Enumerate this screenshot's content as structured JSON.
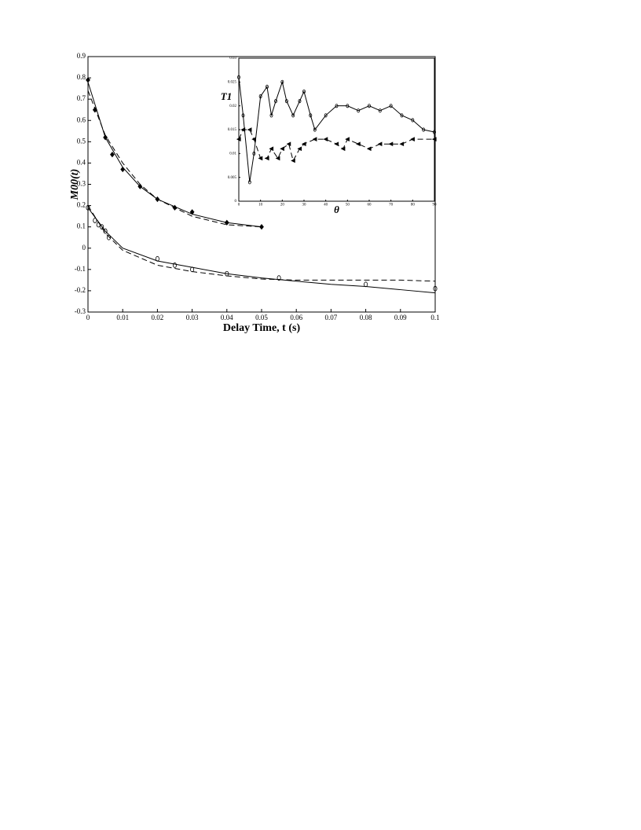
{
  "chart_data": [
    {
      "type": "line",
      "xlabel": "Delay Time, t (s)",
      "ylabel": "M00(t)",
      "xlim": [
        0,
        0.1
      ],
      "xticks": [
        0,
        0.01,
        0.02,
        0.03,
        0.04,
        0.05,
        0.06,
        0.07,
        0.08,
        0.09,
        0.1
      ],
      "ylim": [
        -0.3,
        0.9
      ],
      "yticks": [
        -0.3,
        -0.2,
        -0.1,
        0,
        0.1,
        0.2,
        0.3,
        0.4,
        0.5,
        0.6,
        0.7,
        0.8,
        0.9
      ],
      "series": [
        {
          "color": "#000000",
          "marker": "diamond",
          "line": "none",
          "x": [
            0,
            0.002,
            0.005,
            0.007,
            0.01,
            0.015,
            0.02,
            0.025,
            0.03,
            0.04,
            0.05
          ],
          "values": [
            0.79,
            0.65,
            0.52,
            0.44,
            0.37,
            0.29,
            0.23,
            0.19,
            0.17,
            0.12,
            0.1
          ]
        },
        {
          "color": "#000000",
          "marker": "none",
          "line": "solid",
          "x": [
            0,
            0.005,
            0.01,
            0.015,
            0.02,
            0.03,
            0.04,
            0.05
          ],
          "values": [
            0.78,
            0.52,
            0.38,
            0.29,
            0.23,
            0.16,
            0.12,
            0.1
          ]
        },
        {
          "color": "#000000",
          "marker": "none",
          "line": "dashed",
          "x": [
            0,
            0.005,
            0.01,
            0.015,
            0.02,
            0.03,
            0.04,
            0.05
          ],
          "values": [
            0.74,
            0.53,
            0.4,
            0.3,
            0.23,
            0.15,
            0.11,
            0.1
          ]
        },
        {
          "color": "#000000",
          "marker": "circle",
          "line": "none",
          "x": [
            0,
            0.002,
            0.003,
            0.004,
            0.005,
            0.006,
            0.02,
            0.025,
            0.03,
            0.04,
            0.055,
            0.08,
            0.1
          ],
          "values": [
            0.19,
            0.13,
            0.11,
            0.1,
            0.08,
            0.05,
            -0.05,
            -0.08,
            -0.1,
            -0.12,
            -0.14,
            -0.17,
            -0.19
          ]
        },
        {
          "color": "#000000",
          "marker": "none",
          "line": "solid",
          "x": [
            0,
            0.005,
            0.01,
            0.02,
            0.03,
            0.04,
            0.05,
            0.06,
            0.07,
            0.08,
            0.09,
            0.1
          ],
          "values": [
            0.19,
            0.08,
            0,
            -0.06,
            -0.09,
            -0.12,
            -0.14,
            -0.155,
            -0.17,
            -0.18,
            -0.195,
            -0.21
          ]
        },
        {
          "color": "#000000",
          "marker": "none",
          "line": "dashed",
          "x": [
            0,
            0.005,
            0.01,
            0.02,
            0.03,
            0.04,
            0.05,
            0.06,
            0.07,
            0.08,
            0.09,
            0.1
          ],
          "values": [
            0.2,
            0.07,
            -0.01,
            -0.08,
            -0.11,
            -0.13,
            -0.145,
            -0.15,
            -0.15,
            -0.15,
            -0.15,
            -0.155
          ]
        }
      ]
    },
    {
      "type": "line",
      "xlabel": "θ",
      "ylabel": "T1",
      "xlim": [
        0,
        90
      ],
      "xticks": [
        0,
        10,
        20,
        30,
        40,
        50,
        60,
        70,
        80,
        90
      ],
      "ylim": [
        0,
        0.03
      ],
      "yticks": [
        0,
        0.005,
        0.01,
        0.015,
        0.02,
        0.025,
        0.03
      ],
      "series": [
        {
          "color": "#000000",
          "marker": "circle",
          "line": "solid",
          "x": [
            0,
            2,
            5,
            7,
            10,
            13,
            15,
            17,
            20,
            22,
            25,
            28,
            30,
            33,
            35,
            40,
            45,
            50,
            55,
            60,
            65,
            70,
            75,
            80,
            85,
            90
          ],
          "values": [
            0.026,
            0.018,
            0.004,
            0.01,
            0.022,
            0.024,
            0.018,
            0.021,
            0.025,
            0.021,
            0.018,
            0.021,
            0.023,
            0.018,
            0.015,
            0.018,
            0.02,
            0.02,
            0.019,
            0.02,
            0.019,
            0.02,
            0.018,
            0.017,
            0.015,
            0.0145
          ]
        },
        {
          "color": "#000000",
          "marker": "triangle",
          "line": "dashed",
          "x": [
            0,
            2,
            5,
            7,
            10,
            13,
            15,
            18,
            20,
            23,
            25,
            28,
            30,
            35,
            40,
            45,
            48,
            50,
            55,
            60,
            65,
            70,
            75,
            80,
            90
          ],
          "values": [
            0.013,
            0.015,
            0.015,
            0.013,
            0.009,
            0.009,
            0.011,
            0.009,
            0.011,
            0.012,
            0.0085,
            0.011,
            0.012,
            0.013,
            0.013,
            0.012,
            0.011,
            0.013,
            0.012,
            0.011,
            0.012,
            0.012,
            0.012,
            0.013,
            0.013
          ]
        }
      ]
    }
  ]
}
